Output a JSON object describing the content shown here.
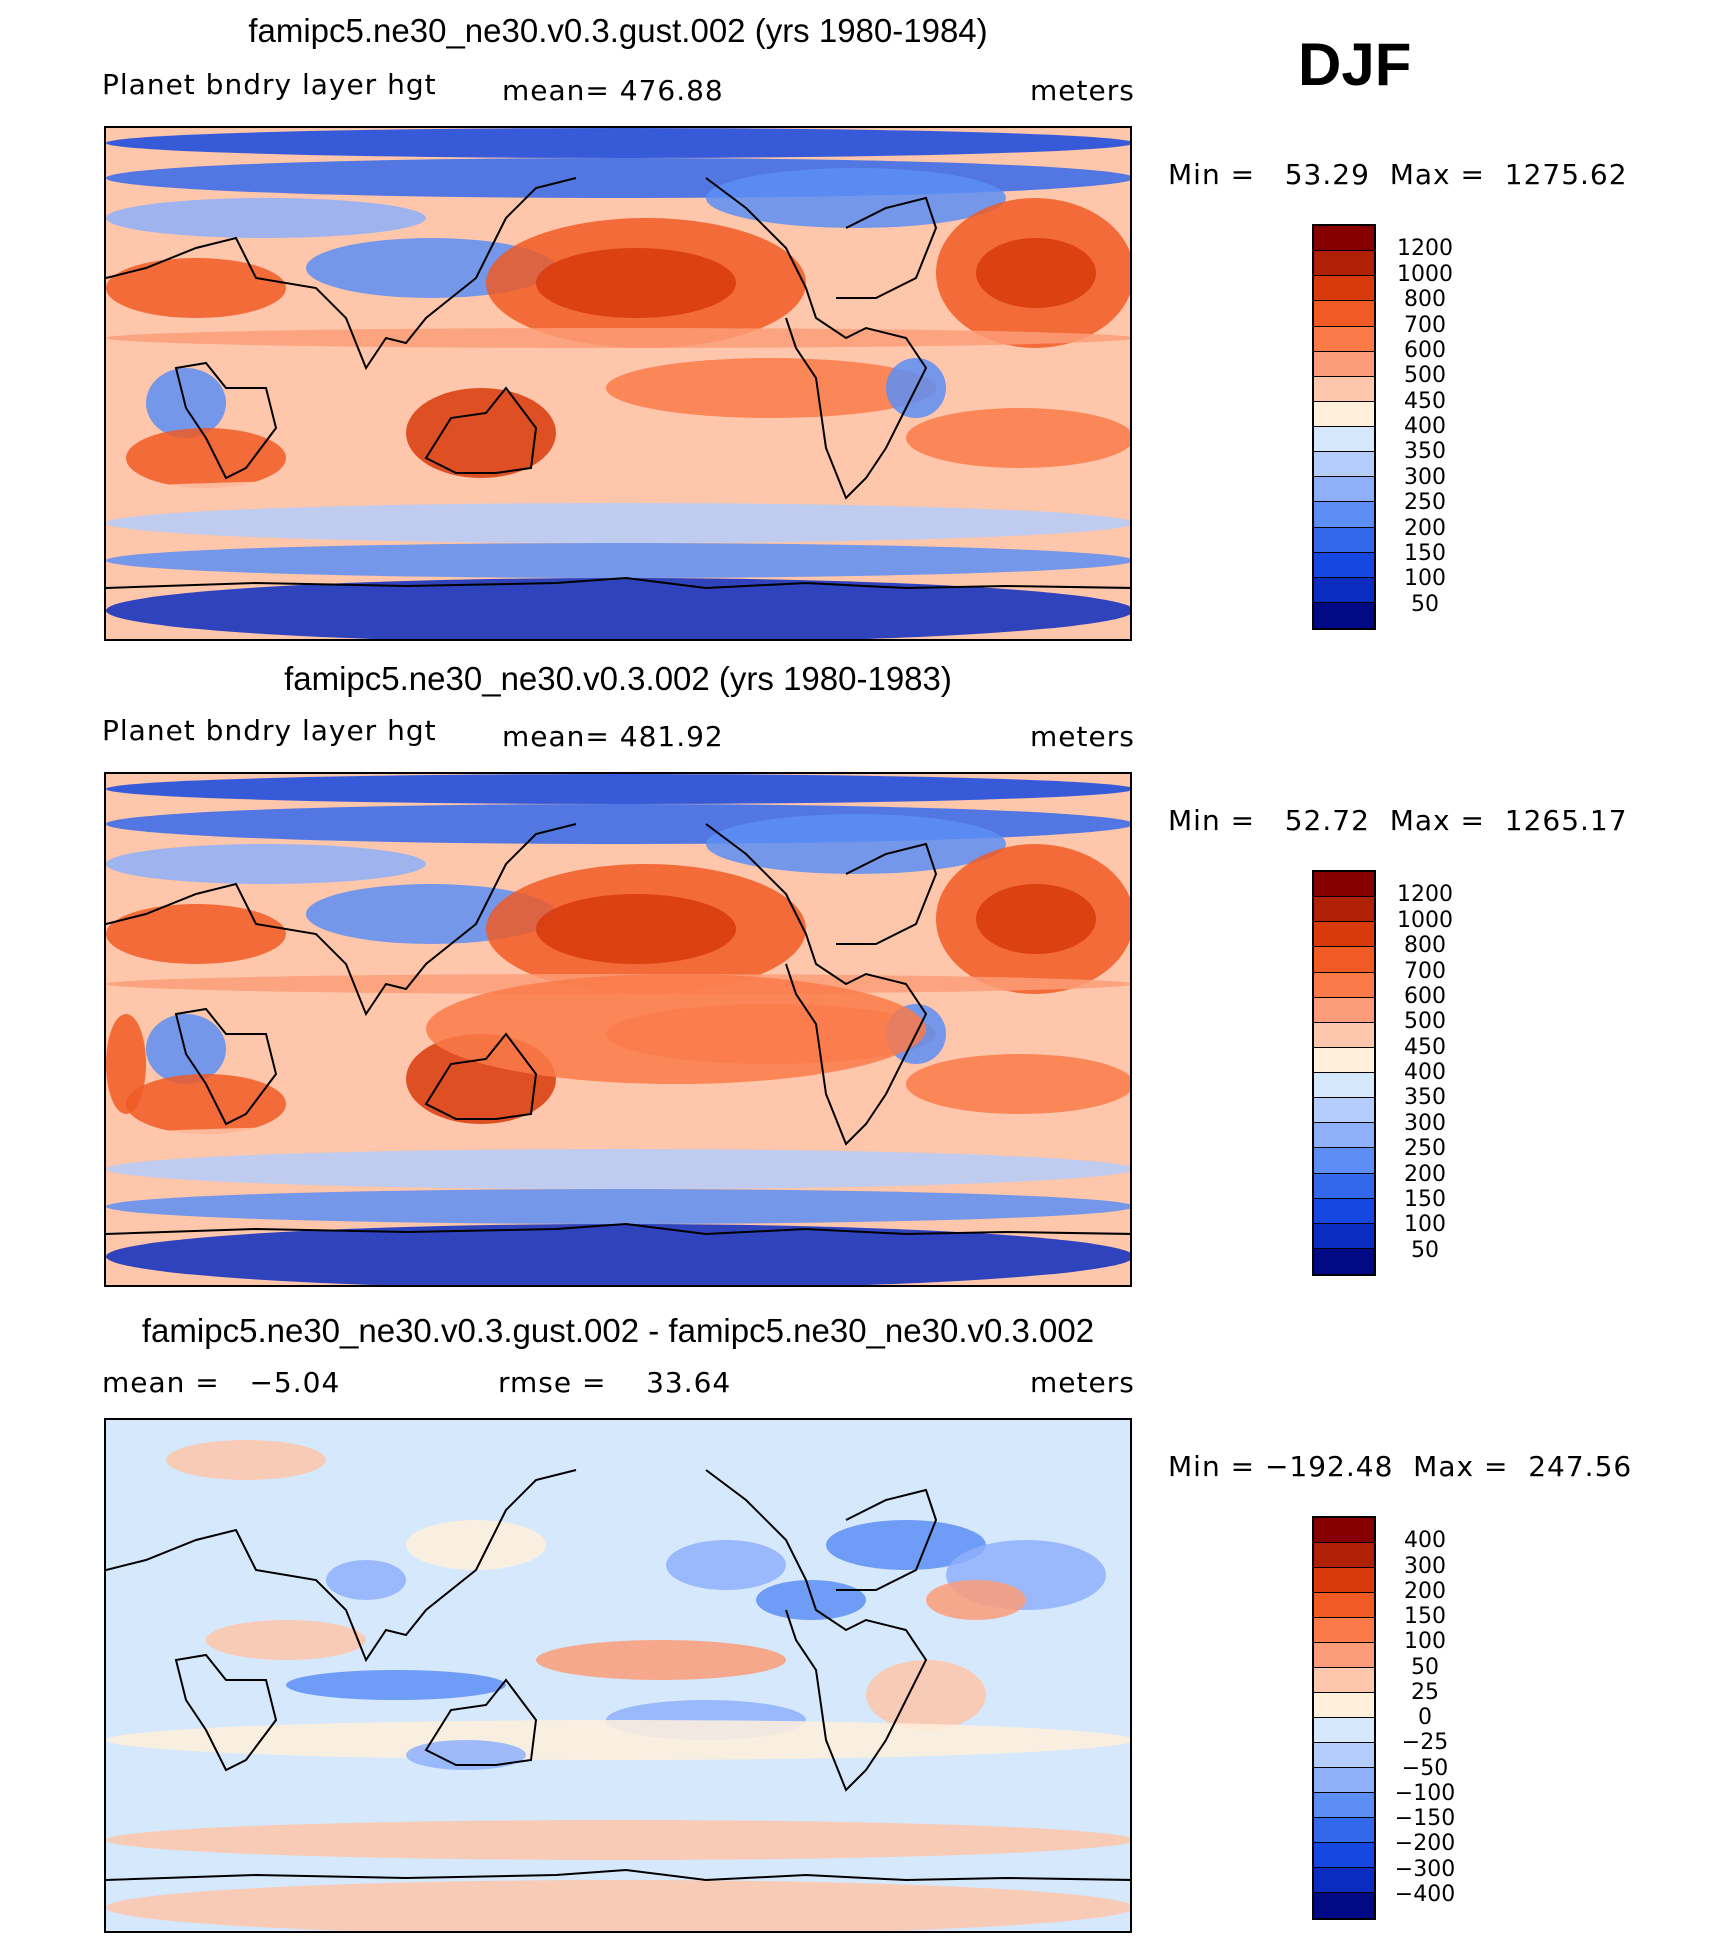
{
  "season": "DJF",
  "panels": [
    {
      "title": "famipc5.ne30_ne30.v0.3.gust.002 (yrs 1980-1984)",
      "variable": "Planet bndry layer hgt",
      "stat": "mean= 476.88",
      "units": "meters",
      "minmax": "Min =   53.29  Max =  1275.62",
      "colorbar": {
        "colors": [
          "#870000",
          "#b02004",
          "#d83a0c",
          "#f05a24",
          "#fa7a4a",
          "#fc9c78",
          "#fec6aa",
          "#fff0dc",
          "#d6e8fb",
          "#b4cdfb",
          "#8eb0fb",
          "#5c8ef5",
          "#3468ec",
          "#1448e0",
          "#0a2cc0",
          "#000a86"
        ],
        "labels": [
          "1200",
          "1000",
          "800",
          "700",
          "600",
          "500",
          "450",
          "400",
          "350",
          "300",
          "250",
          "200",
          "150",
          "100",
          "50"
        ]
      }
    },
    {
      "title": "famipc5.ne30_ne30.v0.3.002 (yrs 1980-1983)",
      "variable": "Planet bndry layer hgt",
      "stat": "mean= 481.92",
      "units": "meters",
      "minmax": "Min =   52.72  Max =  1265.17",
      "colorbar": {
        "colors": [
          "#870000",
          "#b02004",
          "#d83a0c",
          "#f05a24",
          "#fa7a4a",
          "#fc9c78",
          "#fec6aa",
          "#fff0dc",
          "#d6e8fb",
          "#b4cdfb",
          "#8eb0fb",
          "#5c8ef5",
          "#3468ec",
          "#1448e0",
          "#0a2cc0",
          "#000a86"
        ],
        "labels": [
          "1200",
          "1000",
          "800",
          "700",
          "600",
          "500",
          "450",
          "400",
          "350",
          "300",
          "250",
          "200",
          "150",
          "100",
          "50"
        ]
      }
    },
    {
      "title": "famipc5.ne30_ne30.v0.3.gust.002 - famipc5.ne30_ne30.v0.3.002",
      "variable": "mean =   −5.04",
      "stat": "rmse =    33.64",
      "units": "meters",
      "minmax": "Min = −192.48  Max =  247.56",
      "colorbar": {
        "colors": [
          "#870000",
          "#b02004",
          "#d83a0c",
          "#f05a24",
          "#fa7a4a",
          "#fc9c78",
          "#fec6aa",
          "#fff0dc",
          "#d6e8fb",
          "#b4cdfb",
          "#8eb0fb",
          "#5c8ef5",
          "#3468ec",
          "#1448e0",
          "#0a2cc0",
          "#000a86"
        ],
        "labels": [
          "400",
          "300",
          "200",
          "150",
          "100",
          "50",
          "25",
          "0",
          "−25",
          "−50",
          "−100",
          "−150",
          "−200",
          "−300",
          "−400"
        ]
      }
    }
  ]
}
